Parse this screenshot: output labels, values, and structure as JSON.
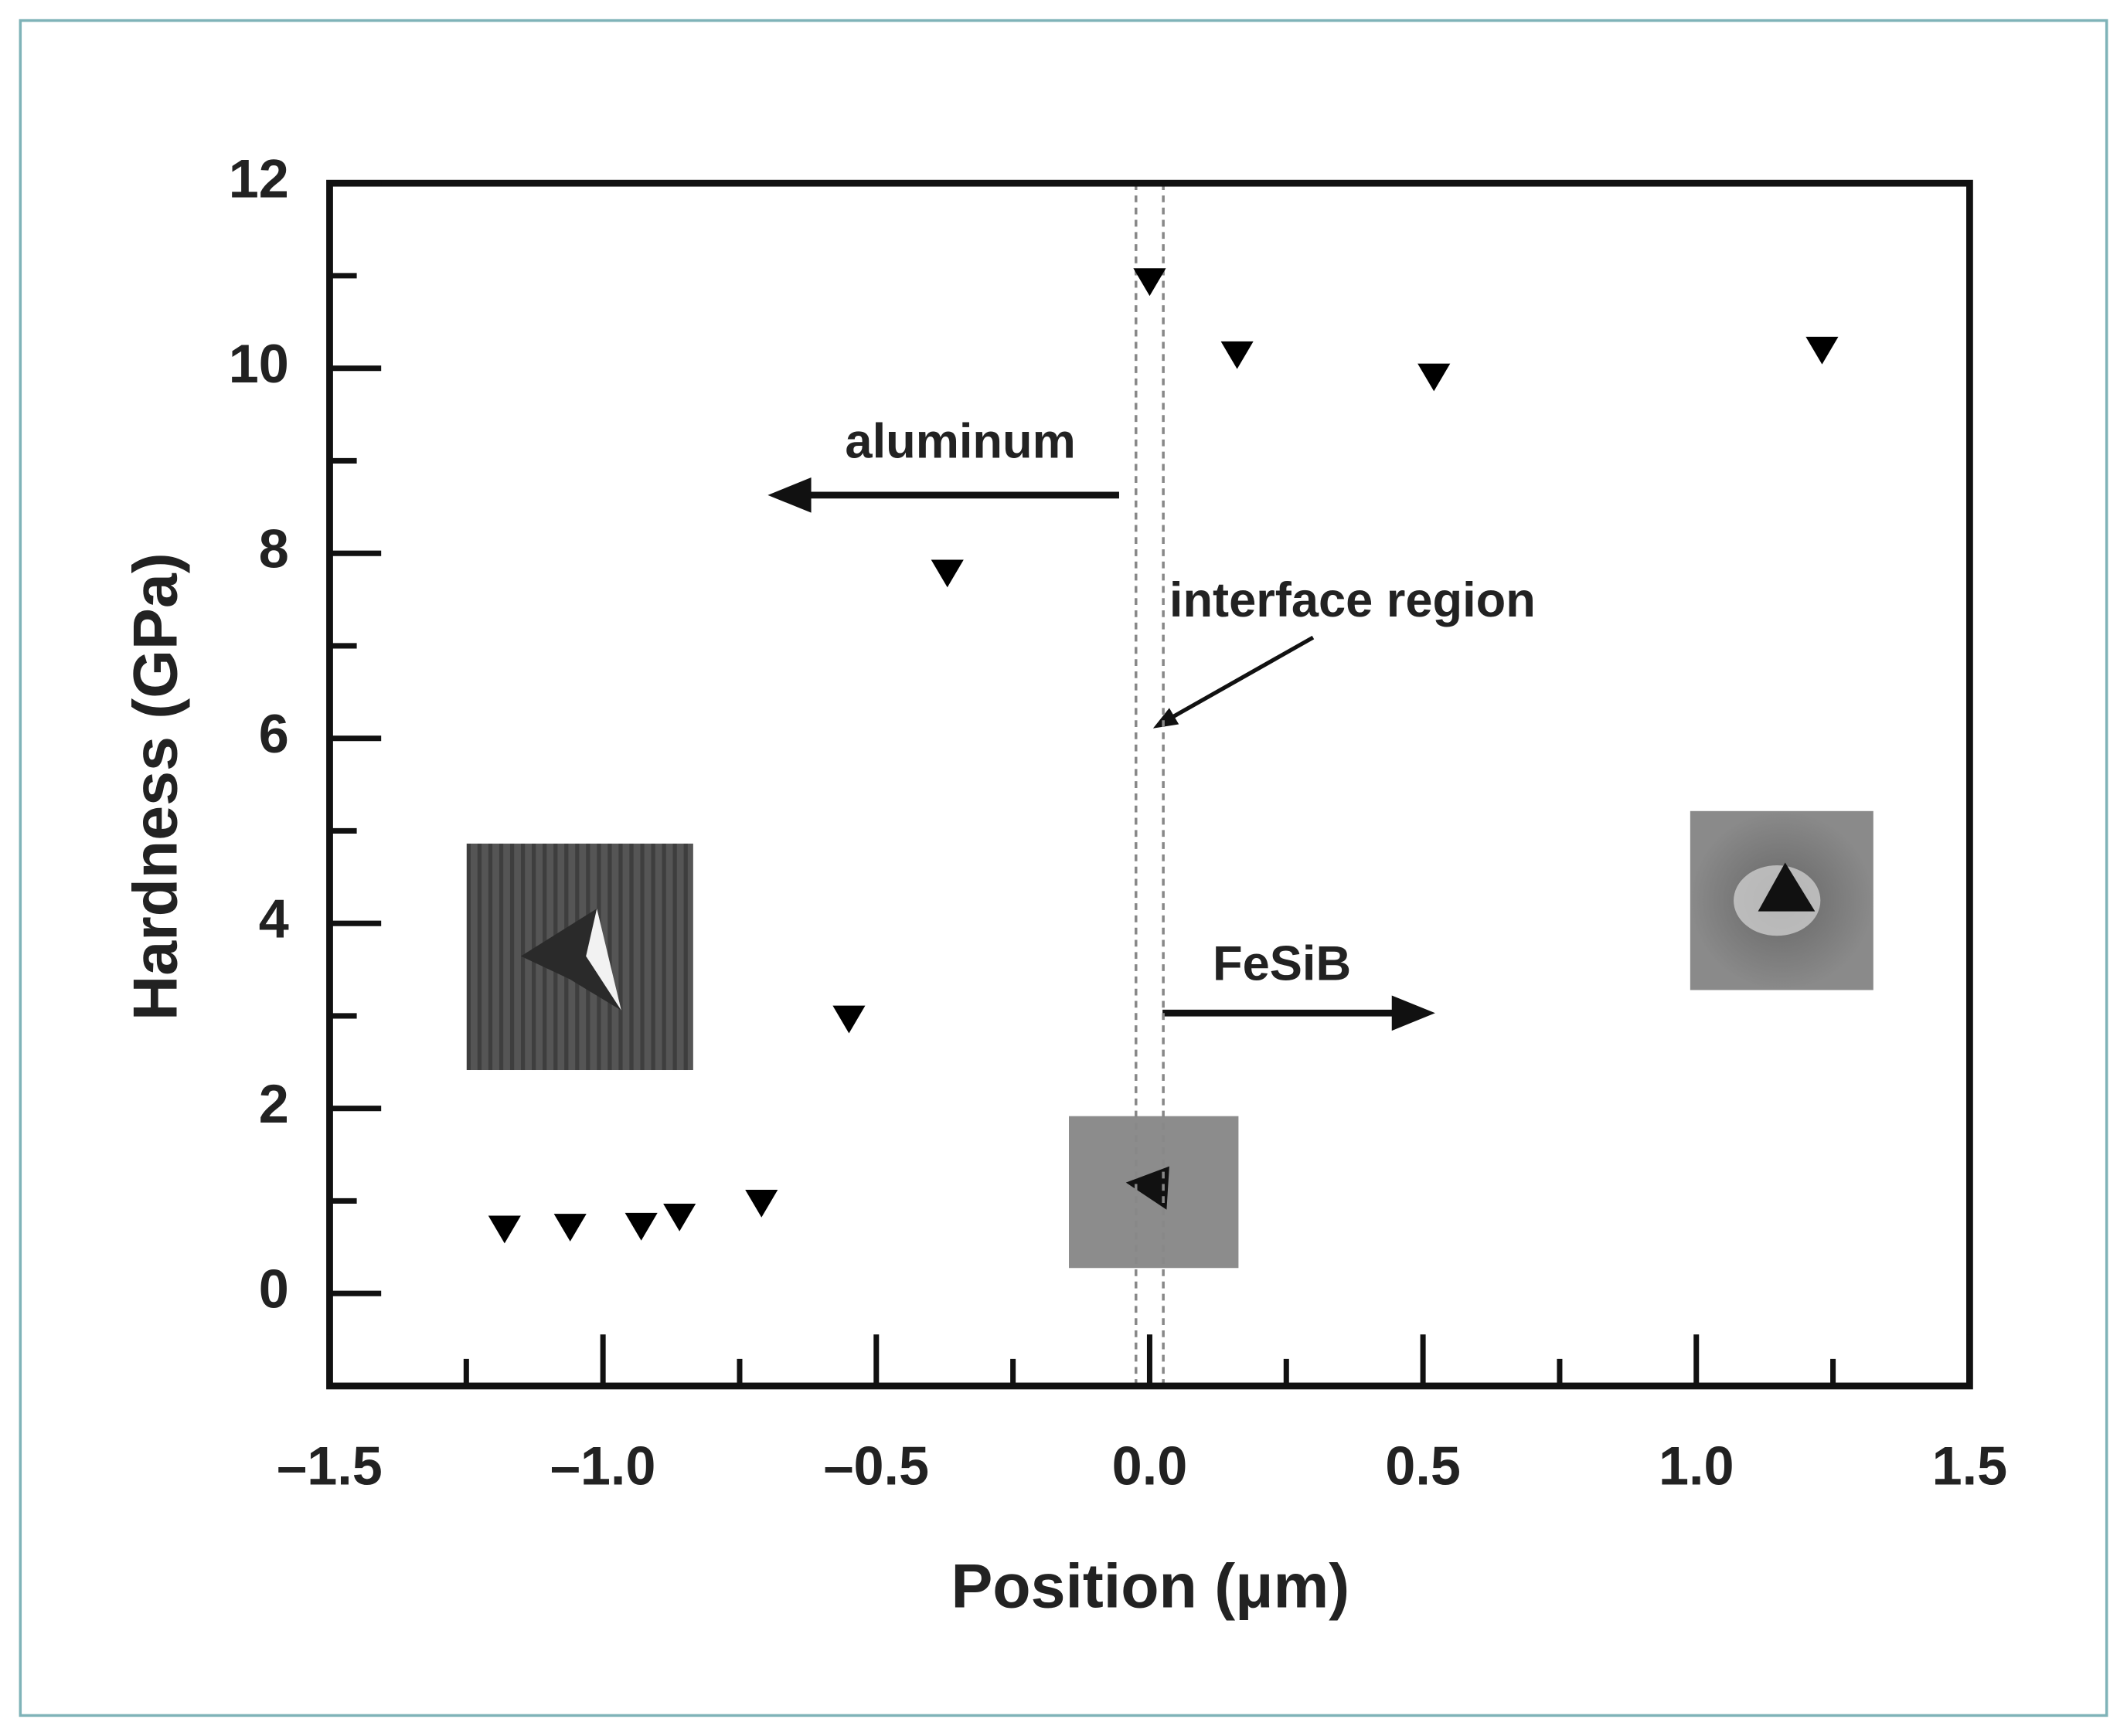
{
  "chart_data": {
    "type": "scatter",
    "xlabel": "Position (μm)",
    "ylabel": "Hardness (GPa)",
    "x": [
      -1.18,
      -1.06,
      -0.93,
      -0.86,
      -0.71,
      -0.55,
      -0.37,
      0.0,
      0.16,
      0.52,
      1.23
    ],
    "values": [
      0.7,
      0.72,
      0.73,
      0.83,
      0.98,
      2.97,
      7.79,
      10.94,
      10.15,
      9.91,
      10.2
    ],
    "color": "#000000",
    "marker": "triangle-down",
    "xlim": [
      -1.5,
      1.5
    ],
    "xticks": [
      {
        "value": -1.5,
        "label": "–1.5"
      },
      {
        "value": -1.0,
        "label": "–1.0"
      },
      {
        "value": -0.5,
        "label": "–0.5"
      },
      {
        "value": 0,
        "label": "0.0"
      },
      0.5,
      {
        "value": 1.0,
        "label": "1.0"
      },
      1.5
    ],
    "xminor": [
      -1.25,
      -0.75,
      -0.25,
      0.25,
      0.75,
      1.25
    ],
    "ylim": [
      -1,
      12
    ],
    "yticks": [
      0,
      2,
      4,
      6,
      8,
      10,
      12
    ],
    "yminor": [
      1,
      3,
      5,
      7,
      9,
      11
    ],
    "interface_lines": [
      -0.025,
      0.025
    ],
    "annotations": [
      "aluminum",
      "interface region",
      "FeSiB"
    ]
  }
}
